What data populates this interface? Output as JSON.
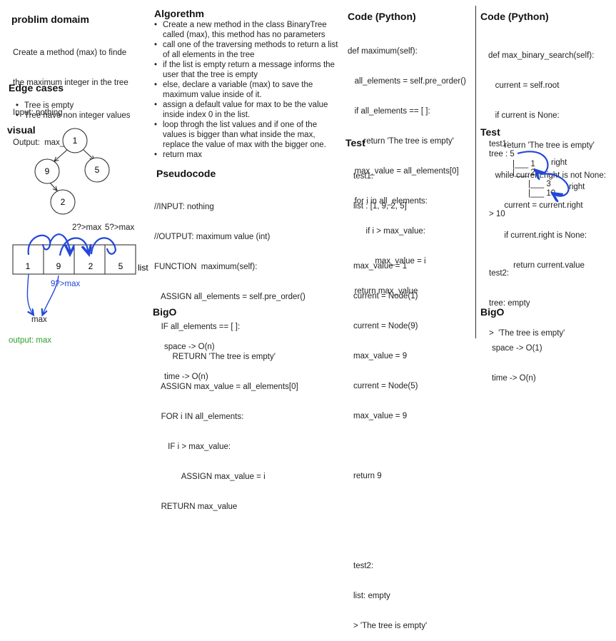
{
  "col1": {
    "problem_title": "problim domaim",
    "problem_lines": [
      "Create a method (max) to finde",
      "the maximum integer in the tree",
      "Input: nothing",
      "Output:  max_int"
    ],
    "edge_title": "Edge cases",
    "edge_items": [
      "Tree is empty",
      "Tree have non integer values"
    ],
    "visual_title": "visual",
    "tree_nodes": [
      "1",
      "9",
      "5",
      "2"
    ],
    "array_cells": [
      "1",
      "9",
      "2",
      "5"
    ],
    "array_label": "list",
    "compare_labels": [
      "2?>max",
      "5?>max"
    ],
    "compare_blue": "9?>max",
    "max_label": "max",
    "output": "output: max"
  },
  "col2": {
    "algo_title": "Algorethm",
    "algo_items": [
      "Create a new method in the class BinaryTree called (max), this method has no parameters",
      "call one of the traversing methods to return a list of all elements in the tree",
      " if the list is empty return a message informs the user that the tree is empty",
      "else, declare a variable (max) to save the maximum value inside of it.",
      "assign a default value for max to be the value inside index 0 in the list.",
      "loop throgh the list values and if one of the values is bigger than what inside the max, replace the value of max with the bigger one.",
      "return max"
    ],
    "pseudo_title": "Pseudocode",
    "pseudo_lines": [
      "//INPUT: nothing",
      "//OUTPUT: maximum value (int)",
      "FUNCTION  maximum(self):",
      "   ASSIGN all_elements = self.pre_order()",
      "   IF all_elements == [ ]:",
      "        RETURN 'The tree is empty'",
      "   ASSIGN max_value = all_elements[0]",
      "   FOR i IN all_elements:",
      "      IF i > max_value:",
      "            ASSIGN max_value = i",
      "   RETURN max_value"
    ],
    "bigo_title": "BigO",
    "bigo_lines": [
      "space -> O(n)",
      "time -> O(n)"
    ]
  },
  "col3": {
    "code_title": "Code (Python)",
    "code_lines": [
      "def maximum(self):",
      "   all_elements = self.pre_order()",
      "   if all_elements == [ ]:",
      "       return 'The tree is empty'",
      "   max_value = all_elements[0]",
      "   for i in all_elements:",
      "        if i > max_value:",
      "            max_value = i",
      "   return max_value"
    ],
    "test_title": "Test",
    "test_lines": [
      "test1:",
      "list : [1, 9, 2, 5]",
      "",
      "max_value = 1",
      "current = Node(1)",
      "current = Node(9)",
      "max_value = 9",
      "current = Node(5)",
      "max_value = 9",
      "",
      "return 9",
      "",
      "",
      "test2:",
      "list: empty",
      "> 'The tree is empty'"
    ]
  },
  "col4": {
    "code_title": "Code (Python)",
    "code_lines": [
      "def max_binary_search(self):",
      "   current = self.root",
      "   if current is None:",
      "       return 'The tree is empty'",
      "   while current.right is not None:",
      "       current = current.right",
      "       if current.right is None:",
      "           return current.value"
    ],
    "test_title": "Test",
    "test1_label": "test1:",
    "tree_line": "tree : 5",
    "tree_rows": [
      "|___ 1",
      "|___ 2",
      "|___ 3",
      "|___ 10"
    ],
    "right_labels": [
      "right",
      "right"
    ],
    "result1": "> 10",
    "test2_lines": [
      "test2:",
      "tree: empty",
      ">  'The tree is empty'"
    ],
    "bigo_title": "BigO",
    "bigo_lines": [
      "space -> O(1)",
      "time -> O(n)"
    ]
  },
  "colors": {
    "ink": "#222222",
    "annotation_blue": "#2347d9",
    "output_green": "#2ea12e",
    "divider": "#333333"
  }
}
